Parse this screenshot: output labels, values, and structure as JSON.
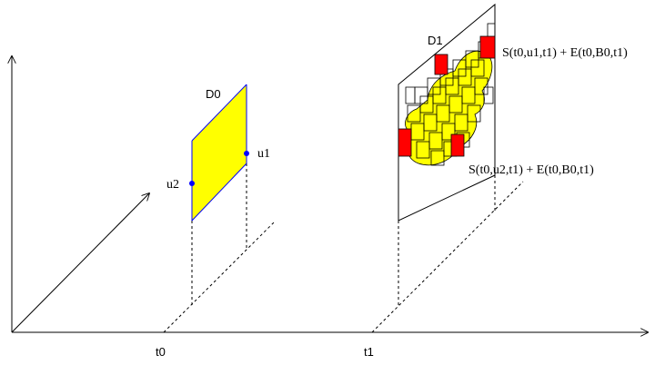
{
  "axes": {
    "t0_label": "t0",
    "t1_label": "t1"
  },
  "domain0": {
    "label": "D0",
    "point1": "u1",
    "point2": "u2",
    "fill_color": "#ffff00",
    "edge_color": "#0000ff"
  },
  "domain1": {
    "label": "D1",
    "annotation_top": "S(t0,u1,t1) + E(t0,B0,t1)",
    "annotation_bottom": "S(t0,u2,t1) + E(t0,B0,t1)",
    "fill_color": "#ffff00",
    "cell_color": "#ff0000"
  }
}
